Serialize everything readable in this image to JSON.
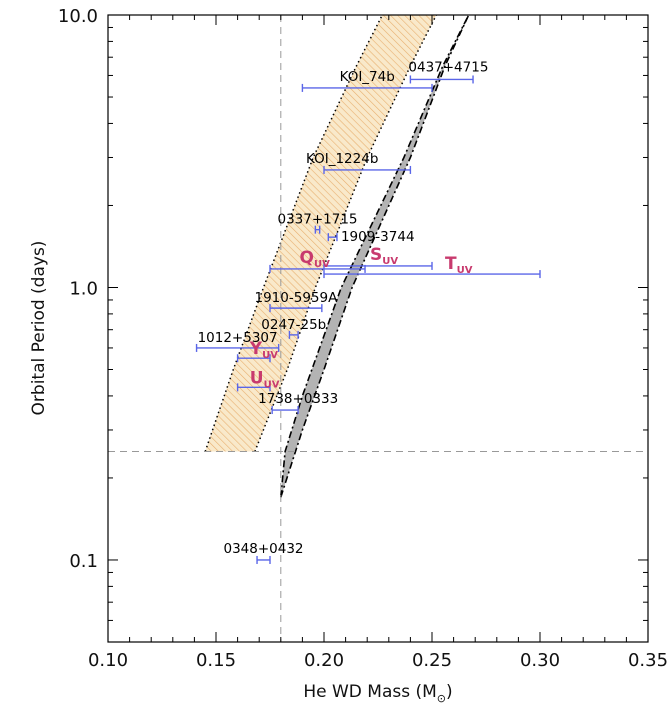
{
  "chart_data": {
    "type": "scatter",
    "xlabel_main": "He WD Mass (M",
    "xlabel_sub": "⊙",
    "xlabel_end": ")",
    "ylabel": "Orbital Period (days)",
    "xlim": [
      0.1,
      0.35
    ],
    "ylim": [
      0.05,
      10.0
    ],
    "yscale": "log",
    "xticks": [
      0.1,
      0.15,
      0.2,
      0.25,
      0.3,
      0.35
    ],
    "xtick_labels": [
      "0.10",
      "0.15",
      "0.20",
      "0.25",
      "0.30",
      "0.35"
    ],
    "yticks": [
      0.1,
      1.0,
      10.0
    ],
    "ytick_labels": [
      "0.1",
      "1.0",
      "10.0"
    ],
    "reference_lines": {
      "vertical_x": 0.18,
      "horizontal_y": 0.25
    },
    "bands": {
      "hatched": {
        "fill": "#f5d9a8",
        "hatch": "#e8a95a",
        "left_edge": [
          [
            0.145,
            0.25
          ],
          [
            0.158,
            0.5
          ],
          [
            0.172,
            1.0
          ],
          [
            0.195,
            3.0
          ],
          [
            0.215,
            6.5
          ],
          [
            0.227,
            10.0
          ]
        ],
        "right_edge": [
          [
            0.168,
            0.25
          ],
          [
            0.183,
            0.5
          ],
          [
            0.196,
            1.0
          ],
          [
            0.22,
            3.0
          ],
          [
            0.24,
            6.5
          ],
          [
            0.252,
            10.0
          ]
        ]
      },
      "gray": {
        "fill": "#b3b3b3",
        "left_edge": [
          [
            0.18,
            0.17
          ],
          [
            0.182,
            0.25
          ],
          [
            0.19,
            0.4
          ],
          [
            0.208,
            1.0
          ],
          [
            0.237,
            3.0
          ],
          [
            0.255,
            6.5
          ],
          [
            0.267,
            10.0
          ]
        ],
        "right_edge": [
          [
            0.18,
            0.17
          ],
          [
            0.19,
            0.3
          ],
          [
            0.2,
            0.5
          ],
          [
            0.213,
            1.0
          ],
          [
            0.24,
            3.0
          ],
          [
            0.256,
            6.5
          ],
          [
            0.267,
            10.0
          ]
        ]
      }
    },
    "series": [
      {
        "color": "#5a66e8",
        "points": [
          {
            "label": "0437+4715",
            "x": 0.254,
            "y": 5.8,
            "xerr": [
              0.24,
              0.269
            ]
          },
          {
            "label": "KOI_74b",
            "x": 0.22,
            "y": 5.4,
            "xerr": [
              0.19,
              0.25
            ]
          },
          {
            "label": "KOI_1224b",
            "x": 0.22,
            "y": 2.7,
            "xerr": [
              0.2,
              0.24
            ]
          },
          {
            "label": "0337+1715",
            "x": 0.197,
            "y": 1.63,
            "xerr": [
              0.196,
              0.198
            ]
          },
          {
            "label": "1909-3744",
            "x": 0.204,
            "y": 1.53,
            "xerr": [
              0.202,
              0.206
            ]
          },
          {
            "label": "1910-5959A",
            "x": 0.187,
            "y": 0.84,
            "xerr": [
              0.175,
              0.199
            ]
          },
          {
            "label": "0247-25b",
            "x": 0.186,
            "y": 0.67,
            "xerr": [
              0.184,
              0.188
            ]
          },
          {
            "label": "1012+5307",
            "x": 0.16,
            "y": 0.6,
            "xerr": [
              0.141,
              0.179
            ]
          },
          {
            "label": "1738+0333",
            "x": 0.182,
            "y": 0.355,
            "xerr": [
              0.176,
              0.188
            ]
          },
          {
            "label": "0348+0432",
            "x": 0.172,
            "y": 0.1,
            "xerr": [
              0.169,
              0.175
            ]
          }
        ]
      },
      {
        "color": "#c83a6e",
        "points": [
          {
            "label": "Q",
            "sub": "UV",
            "x": 0.197,
            "y": 1.17,
            "xerr": [
              0.175,
              0.219
            ]
          },
          {
            "label": "S",
            "sub": "UV",
            "x": 0.225,
            "y": 1.2,
            "xerr": [
              0.2,
              0.25
            ]
          },
          {
            "label": "T",
            "sub": "UV",
            "x": 0.25,
            "y": 1.12,
            "xerr": [
              0.2,
              0.3
            ]
          },
          {
            "label": "Y",
            "sub": "UV",
            "x": 0.1675,
            "y": 0.55,
            "xerr": [
              0.16,
              0.175
            ]
          },
          {
            "label": "U",
            "sub": "UV",
            "x": 0.1675,
            "y": 0.43,
            "xerr": [
              0.16,
              0.175
            ]
          }
        ]
      }
    ]
  }
}
